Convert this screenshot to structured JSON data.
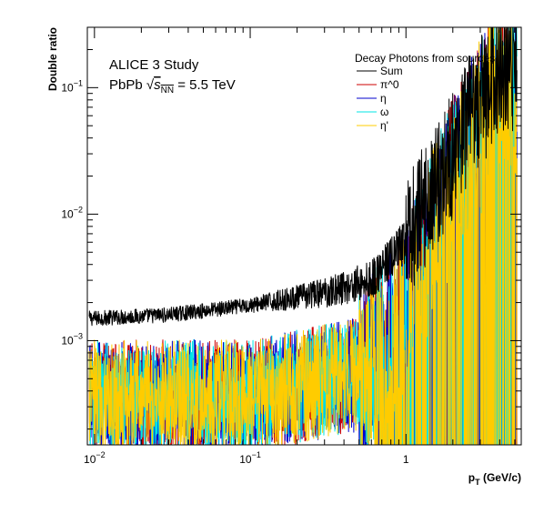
{
  "chart_data": {
    "type": "line",
    "xlabel": "p_T (GeV/c)",
    "ylabel": "Double ratio",
    "xscale": "log",
    "yscale": "log",
    "xlim": [
      0.009,
      5.5
    ],
    "ylim": [
      0.00015,
      0.3
    ],
    "x_ticks": [
      {
        "value": 0.01,
        "base": "10",
        "exp": "−2"
      },
      {
        "value": 0.1,
        "base": "10",
        "exp": "−1"
      },
      {
        "value": 1,
        "base": "1",
        "exp": ""
      }
    ],
    "y_ticks": [
      {
        "value": 0.001,
        "base": "10",
        "exp": "−3"
      },
      {
        "value": 0.01,
        "base": "10",
        "exp": "−2"
      },
      {
        "value": 0.1,
        "base": "10",
        "exp": "−1"
      }
    ],
    "annotation": {
      "line1": "ALICE 3 Study",
      "line2_prefix": "PbPb ",
      "sqrt_s": "s",
      "sqrt_sub": "NN",
      "line2_suffix": " = 5.5 TeV"
    },
    "legend": {
      "title": "Decay Photons from sources",
      "position": "top-right"
    },
    "series": [
      {
        "name": "Sum",
        "color": "#000000",
        "level_low": 0.0014,
        "level_high": 0.0028,
        "description_points": [
          [
            0.01,
            0.0015
          ],
          [
            0.03,
            0.0016
          ],
          [
            0.1,
            0.0019
          ],
          [
            0.3,
            0.0024
          ],
          [
            0.6,
            0.003
          ],
          [
            1.0,
            0.006
          ],
          [
            2.0,
            0.03
          ],
          [
            4.0,
            0.15
          ]
        ]
      },
      {
        "name": "π^0",
        "color": "#cc0000",
        "points": [
          [
            0.01,
            0.0004
          ],
          [
            0.1,
            0.0004
          ],
          [
            0.5,
            0.0006
          ],
          [
            1.0,
            0.002
          ],
          [
            2.0,
            0.02
          ],
          [
            4.0,
            0.12
          ]
        ]
      },
      {
        "name": "η",
        "color": "#0000cc",
        "points": [
          [
            0.01,
            0.0004
          ],
          [
            0.1,
            0.0004
          ],
          [
            0.5,
            0.0006
          ],
          [
            1.0,
            0.002
          ],
          [
            2.0,
            0.02
          ],
          [
            4.0,
            0.12
          ]
        ]
      },
      {
        "name": "ω",
        "color": "#00e5e5",
        "points": [
          [
            0.01,
            0.0004
          ],
          [
            0.1,
            0.0004
          ],
          [
            0.5,
            0.0006
          ],
          [
            1.0,
            0.002
          ],
          [
            2.0,
            0.02
          ],
          [
            4.0,
            0.12
          ]
        ]
      },
      {
        "name": "η'",
        "color": "#ffcc00",
        "points": [
          [
            0.01,
            0.0004
          ],
          [
            0.1,
            0.0004
          ],
          [
            0.5,
            0.0006
          ],
          [
            1.0,
            0.002
          ],
          [
            2.0,
            0.02
          ],
          [
            4.0,
            0.12
          ]
        ]
      }
    ]
  }
}
